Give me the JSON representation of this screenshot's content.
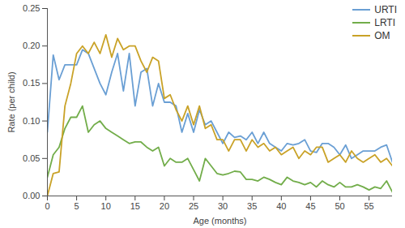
{
  "chart_data": {
    "type": "line",
    "x_label": "Age (months)",
    "y_label": "Rate (per child)",
    "x": [
      0,
      1,
      2,
      3,
      4,
      5,
      6,
      7,
      8,
      9,
      10,
      11,
      12,
      13,
      14,
      15,
      16,
      17,
      18,
      19,
      20,
      21,
      22,
      23,
      24,
      25,
      26,
      27,
      28,
      29,
      30,
      31,
      32,
      33,
      34,
      35,
      36,
      37,
      38,
      39,
      40,
      41,
      42,
      43,
      44,
      45,
      46,
      47,
      48,
      49,
      50,
      51,
      52,
      53,
      54,
      55,
      56,
      57,
      58,
      59
    ],
    "series": [
      {
        "name": "URTI",
        "color": "#6a9fd4",
        "values": [
          0.085,
          0.188,
          0.155,
          0.175,
          0.175,
          0.175,
          0.195,
          0.19,
          0.17,
          0.15,
          0.135,
          0.165,
          0.19,
          0.14,
          0.19,
          0.12,
          0.165,
          0.17,
          0.12,
          0.15,
          0.125,
          0.125,
          0.12,
          0.085,
          0.11,
          0.085,
          0.115,
          0.095,
          0.1,
          0.085,
          0.07,
          0.085,
          0.078,
          0.08,
          0.075,
          0.085,
          0.07,
          0.085,
          0.07,
          0.065,
          0.06,
          0.07,
          0.068,
          0.07,
          0.075,
          0.06,
          0.058,
          0.07,
          0.07,
          0.065,
          0.055,
          0.068,
          0.05,
          0.055,
          0.06,
          0.06,
          0.06,
          0.065,
          0.068,
          0.045
        ]
      },
      {
        "name": "LRTI",
        "color": "#72ad4a",
        "values": [
          0.025,
          0.055,
          0.065,
          0.09,
          0.105,
          0.105,
          0.12,
          0.085,
          0.095,
          0.1,
          0.09,
          0.085,
          0.08,
          0.075,
          0.07,
          0.072,
          0.072,
          0.065,
          0.06,
          0.065,
          0.04,
          0.05,
          0.045,
          0.045,
          0.05,
          0.035,
          0.02,
          0.05,
          0.04,
          0.03,
          0.028,
          0.03,
          0.033,
          0.032,
          0.022,
          0.022,
          0.02,
          0.025,
          0.022,
          0.018,
          0.015,
          0.025,
          0.02,
          0.018,
          0.015,
          0.018,
          0.012,
          0.02,
          0.015,
          0.012,
          0.018,
          0.012,
          0.012,
          0.015,
          0.012,
          0.008,
          0.012,
          0.01,
          0.02,
          0.005
        ]
      },
      {
        "name": "OM",
        "color": "#c9a227",
        "values": [
          0.0,
          0.03,
          0.032,
          0.12,
          0.15,
          0.19,
          0.2,
          0.19,
          0.205,
          0.19,
          0.215,
          0.185,
          0.21,
          0.195,
          0.2,
          0.2,
          0.18,
          0.165,
          0.185,
          0.18,
          0.13,
          0.135,
          0.115,
          0.1,
          0.12,
          0.095,
          0.12,
          0.09,
          0.095,
          0.075,
          0.075,
          0.06,
          0.075,
          0.075,
          0.06,
          0.075,
          0.065,
          0.07,
          0.06,
          0.065,
          0.055,
          0.06,
          0.065,
          0.05,
          0.06,
          0.055,
          0.065,
          0.065,
          0.045,
          0.05,
          0.055,
          0.045,
          0.06,
          0.05,
          0.045,
          0.05,
          0.055,
          0.045,
          0.05,
          0.04
        ]
      }
    ],
    "xlim": [
      0,
      59
    ],
    "xticks": [
      0,
      5,
      10,
      15,
      20,
      25,
      30,
      35,
      40,
      45,
      50,
      55
    ],
    "ylim": [
      0,
      0.25
    ],
    "yticks": [
      {
        "value": 0,
        "label": "0.00"
      },
      {
        "value": 0.05,
        "label": "0.05"
      },
      {
        "value": 0.1,
        "label": "0.10"
      },
      {
        "value": 0.15,
        "label": "0.15"
      },
      {
        "value": 0.2,
        "label": "0.20"
      },
      {
        "value": 0.25,
        "label": "0.25"
      }
    ],
    "grid": false,
    "legend": "top-right"
  }
}
